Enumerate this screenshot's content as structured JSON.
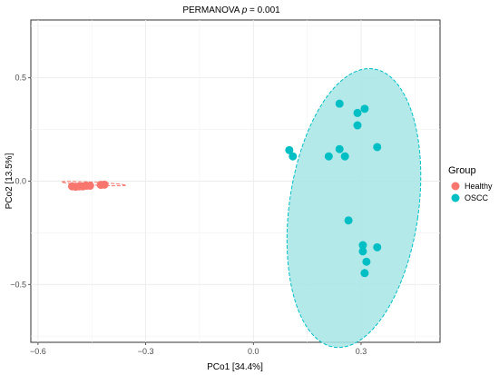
{
  "chart_data": {
    "type": "scatter",
    "title_prefix": "PERMANOVA ",
    "title_p": "p",
    "title_suffix": " = 0.001",
    "xlabel": "PCo1 [34.4%]",
    "ylabel": "PCo2 [13.5%]",
    "xlim": [
      -0.62,
      0.52
    ],
    "ylim": [
      -0.78,
      0.78
    ],
    "xticks": [
      -0.6,
      -0.3,
      0.0,
      0.3
    ],
    "xtick_labels": [
      "−0.6",
      "−0.3",
      "0.0",
      "0.3"
    ],
    "yticks": [
      -0.5,
      0.0,
      0.5
    ],
    "ytick_labels": [
      "−0.5",
      "0.0",
      "0.5"
    ],
    "grid": true,
    "legend": {
      "title": "Group",
      "position": "right",
      "entries": [
        "Healthy",
        "OSCC"
      ]
    },
    "series": [
      {
        "name": "Healthy",
        "color": "#F8766D",
        "points": [
          [
            -0.505,
            -0.025
          ],
          [
            -0.495,
            -0.027
          ],
          [
            -0.485,
            -0.025
          ],
          [
            -0.475,
            -0.025
          ],
          [
            -0.465,
            -0.022
          ],
          [
            -0.455,
            -0.022
          ],
          [
            -0.425,
            -0.018
          ],
          [
            -0.415,
            -0.017
          ]
        ],
        "ellipse": {
          "center": [
            -0.445,
            -0.012
          ],
          "rx": 0.09,
          "ry": 0.007,
          "angle_deg": 3
        }
      },
      {
        "name": "OSCC",
        "color": "#00BFC4",
        "fill": "#A7E5E6",
        "points": [
          [
            0.24,
            0.375
          ],
          [
            0.31,
            0.35
          ],
          [
            0.29,
            0.33
          ],
          [
            0.29,
            0.27
          ],
          [
            0.1,
            0.15
          ],
          [
            0.11,
            0.12
          ],
          [
            0.21,
            0.12
          ],
          [
            0.24,
            0.155
          ],
          [
            0.255,
            0.12
          ],
          [
            0.345,
            0.165
          ],
          [
            0.265,
            -0.19
          ],
          [
            0.305,
            -0.31
          ],
          [
            0.345,
            -0.32
          ],
          [
            0.305,
            -0.34
          ],
          [
            0.315,
            -0.39
          ],
          [
            0.31,
            -0.445
          ]
        ],
        "ellipse": {
          "center": [
            0.28,
            -0.13
          ],
          "rx": 0.18,
          "ry": 0.68,
          "angle_deg": 8
        }
      }
    ]
  }
}
